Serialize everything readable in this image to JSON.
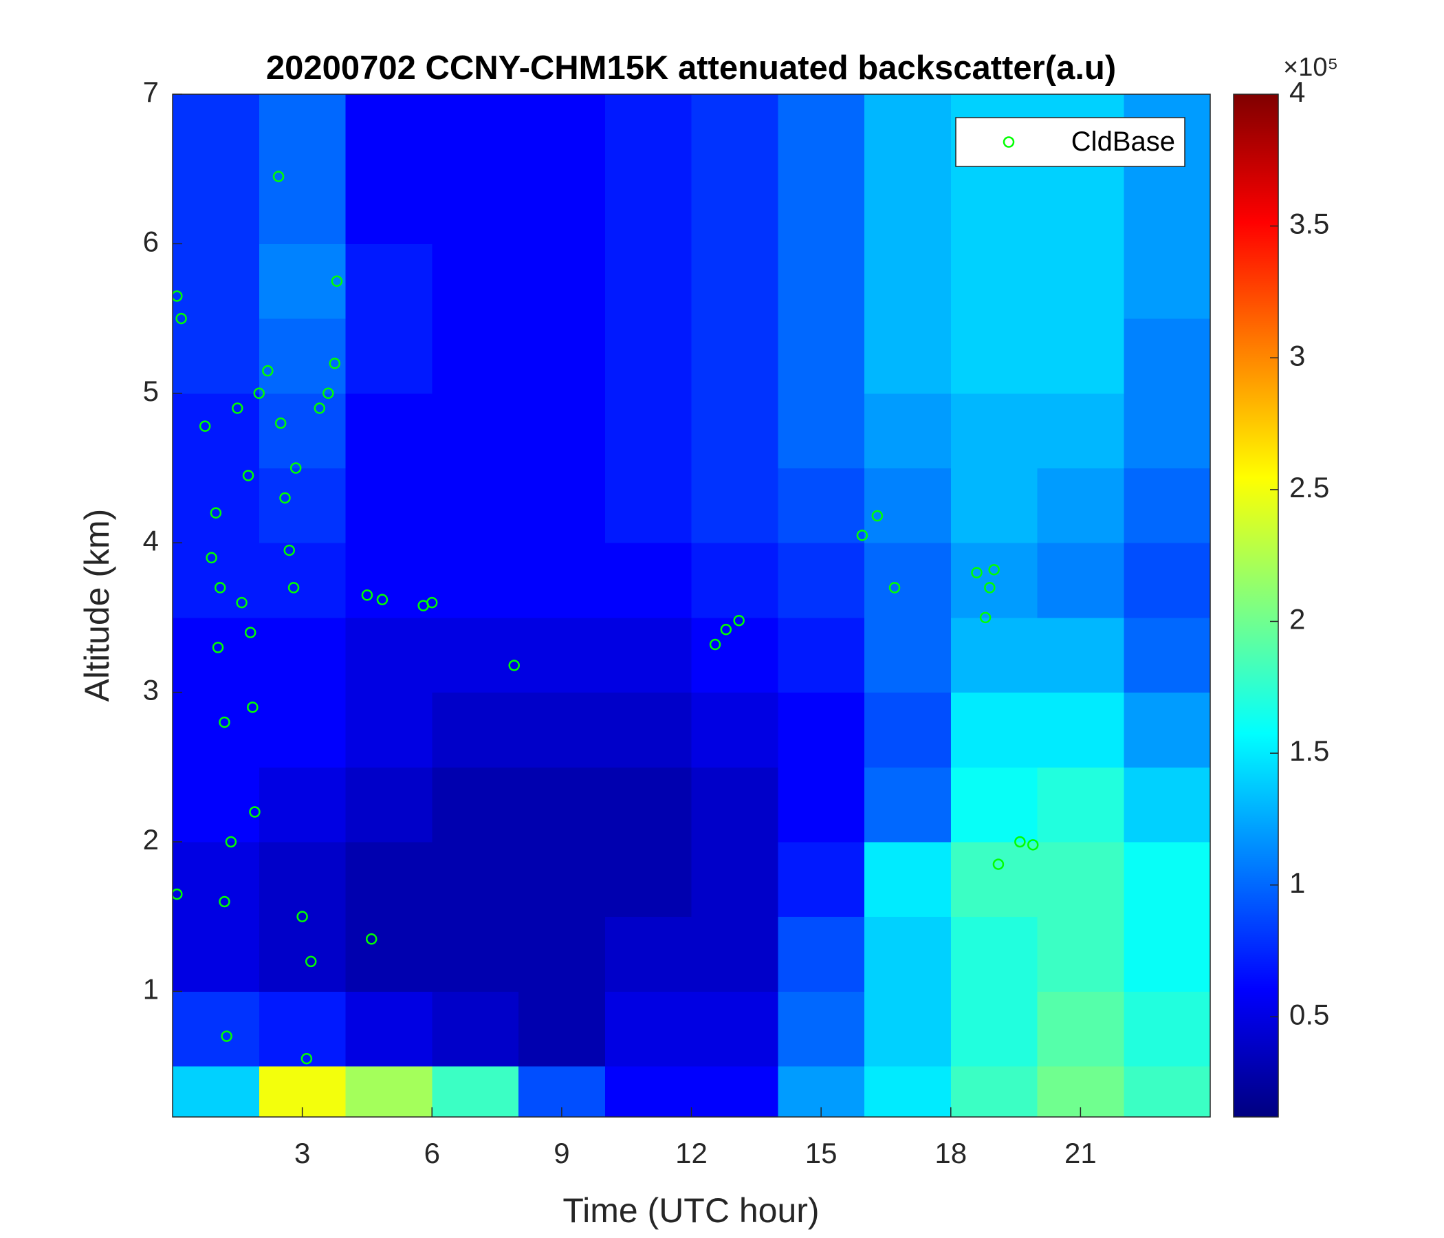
{
  "chart_data": {
    "type": "heatmap",
    "title": "20200702 CCNY-CHM15K attenuated backscatter(a.u)",
    "x_label": "Time (UTC hour)",
    "y_label": "Altitude (km)",
    "xlim": [
      0,
      24
    ],
    "xticks": [
      3,
      6,
      9,
      12,
      15,
      18,
      21
    ],
    "ylim": [
      0.16,
      7
    ],
    "yticks": [
      1,
      2,
      3,
      4,
      5,
      6,
      7
    ],
    "colormap": "jet",
    "clim": [
      0.12,
      4
    ],
    "cticks": [
      0.5,
      1,
      1.5,
      2,
      2.5,
      3,
      3.5,
      4
    ],
    "colorbar_scale": "×10⁵",
    "x_edges": [
      0,
      2,
      4,
      6,
      8,
      10,
      12,
      14,
      16,
      18,
      20,
      22,
      24
    ],
    "y_edges": [
      0.16,
      0.5,
      1,
      1.5,
      2,
      2.5,
      3,
      3.5,
      4,
      4.5,
      5,
      5.5,
      6,
      6.5,
      7
    ],
    "z": [
      [
        1.4,
        2.5,
        2.2,
        1.8,
        0.9,
        0.6,
        0.6,
        1.2,
        1.5,
        1.8,
        2.0,
        1.8
      ],
      [
        0.8,
        0.7,
        0.5,
        0.4,
        0.3,
        0.5,
        0.5,
        1.0,
        1.4,
        1.7,
        1.9,
        1.7
      ],
      [
        0.5,
        0.4,
        0.3,
        0.3,
        0.3,
        0.4,
        0.4,
        0.9,
        1.4,
        1.7,
        1.8,
        1.6
      ],
      [
        0.5,
        0.4,
        0.3,
        0.3,
        0.3,
        0.3,
        0.4,
        0.7,
        1.5,
        1.8,
        1.8,
        1.6
      ],
      [
        0.6,
        0.5,
        0.4,
        0.3,
        0.3,
        0.3,
        0.4,
        0.6,
        1.0,
        1.6,
        1.7,
        1.4
      ],
      [
        0.6,
        0.6,
        0.5,
        0.4,
        0.4,
        0.4,
        0.5,
        0.6,
        0.9,
        1.5,
        1.5,
        1.2
      ],
      [
        0.6,
        0.6,
        0.5,
        0.5,
        0.5,
        0.5,
        0.6,
        0.7,
        1.0,
        1.3,
        1.3,
        1.0
      ],
      [
        0.7,
        0.7,
        0.6,
        0.6,
        0.6,
        0.6,
        0.7,
        0.8,
        1.0,
        1.2,
        1.1,
        0.9
      ],
      [
        0.7,
        0.8,
        0.6,
        0.6,
        0.6,
        0.7,
        0.8,
        0.9,
        1.1,
        1.3,
        1.2,
        1.0
      ],
      [
        0.7,
        0.9,
        0.6,
        0.6,
        0.6,
        0.7,
        0.8,
        1.0,
        1.2,
        1.3,
        1.3,
        1.1
      ],
      [
        0.8,
        1.0,
        0.7,
        0.6,
        0.6,
        0.7,
        0.8,
        1.0,
        1.3,
        1.4,
        1.4,
        1.1
      ],
      [
        0.8,
        1.1,
        0.7,
        0.6,
        0.6,
        0.7,
        0.8,
        1.0,
        1.3,
        1.4,
        1.4,
        1.2
      ],
      [
        0.8,
        1.0,
        0.6,
        0.6,
        0.6,
        0.7,
        0.8,
        1.0,
        1.3,
        1.4,
        1.4,
        1.2
      ],
      [
        0.8,
        1.0,
        0.6,
        0.6,
        0.6,
        0.7,
        0.8,
        1.0,
        1.3,
        1.4,
        1.4,
        1.2
      ]
    ],
    "series": [
      {
        "name": "CldBase",
        "color": "#00ff00",
        "x": [
          0.1,
          0.2,
          0.1,
          0.75,
          0.9,
          1.0,
          1.1,
          1.05,
          1.2,
          1.25,
          1.2,
          1.35,
          1.5,
          1.6,
          1.75,
          1.8,
          1.85,
          1.9,
          2.0,
          2.2,
          2.45,
          2.5,
          2.6,
          2.7,
          2.8,
          2.85,
          3.0,
          3.1,
          3.2,
          3.4,
          3.6,
          3.75,
          3.8,
          4.5,
          4.6,
          4.85,
          5.8,
          6.0,
          7.9,
          12.55,
          12.8,
          13.1,
          15.95,
          16.3,
          16.7,
          18.6,
          18.8,
          18.9,
          19.0,
          19.1,
          19.6,
          19.9
        ],
        "y": [
          5.65,
          5.5,
          1.65,
          4.78,
          3.9,
          4.2,
          3.7,
          3.3,
          2.8,
          0.7,
          1.6,
          2.0,
          4.9,
          3.6,
          4.45,
          3.4,
          2.9,
          2.2,
          5.0,
          5.15,
          6.45,
          4.8,
          4.3,
          3.95,
          3.7,
          4.5,
          1.5,
          0.55,
          1.2,
          4.9,
          5.0,
          5.2,
          5.75,
          3.65,
          1.35,
          3.62,
          3.58,
          3.6,
          3.18,
          3.32,
          3.42,
          3.48,
          4.05,
          4.18,
          3.7,
          3.8,
          3.5,
          3.7,
          3.82,
          1.85,
          2.0,
          1.98
        ]
      }
    ],
    "legend": "northeast"
  }
}
